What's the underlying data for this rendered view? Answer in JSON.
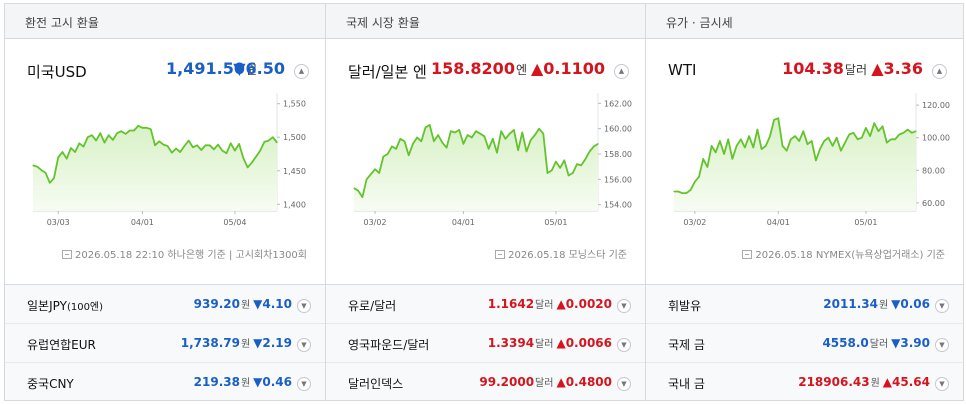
{
  "panels": [
    {
      "header": "환전 고시 환율",
      "main": {
        "name": "미국USD",
        "value": "1,491.50",
        "unit": "원",
        "arrow": "▼",
        "change": "6.50",
        "direction": "down",
        "expand_icon": "chevron-up-icon"
      },
      "source": {
        "icon": "source-document-icon",
        "text": "2026.05.18 22:10 하나은행 기준",
        "extra": "고시회차1300회"
      },
      "rows": [
        {
          "name": "일본JPY",
          "name_small": "(100엔)",
          "value": "939.20",
          "unit": "원",
          "arrow": "▼",
          "change": "4.10",
          "direction": "down"
        },
        {
          "name": "유럽연합EUR",
          "name_small": "",
          "value": "1,738.79",
          "unit": "원",
          "arrow": "▼",
          "change": "2.19",
          "direction": "down"
        },
        {
          "name": "중국CNY",
          "name_small": "",
          "value": "219.38",
          "unit": "원",
          "arrow": "▼",
          "change": "0.46",
          "direction": "down"
        }
      ]
    },
    {
      "header": "국제 시장 환율",
      "main": {
        "name": "달러/일본 엔",
        "value": "158.8200",
        "unit": "엔",
        "arrow": "▲",
        "change": "0.1100",
        "direction": "up",
        "expand_icon": "chevron-up-icon"
      },
      "source": {
        "icon": "source-document-icon",
        "text": "2026.05.18 모닝스타 기준",
        "extra": ""
      },
      "rows": [
        {
          "name": "유로/달러",
          "name_small": "",
          "value": "1.1642",
          "unit": "달러",
          "arrow": "▲",
          "change": "0.0020",
          "direction": "up"
        },
        {
          "name": "영국파운드/달러",
          "name_small": "",
          "value": "1.3394",
          "unit": "달러",
          "arrow": "▲",
          "change": "0.0066",
          "direction": "up"
        },
        {
          "name": "달러인덱스",
          "name_small": "",
          "value": "99.2000",
          "unit": "달러",
          "arrow": "▲",
          "change": "0.4800",
          "direction": "up"
        }
      ]
    },
    {
      "header": "유가 · 금시세",
      "main": {
        "name": "WTI",
        "value": "104.38",
        "unit": "달러",
        "arrow": "▲",
        "change": "3.36",
        "direction": "up",
        "expand_icon": "chevron-up-icon"
      },
      "source": {
        "icon": "source-document-icon",
        "text": "2026.05.18 NYMEX(뉴욕상업거래소) 기준",
        "extra": ""
      },
      "rows": [
        {
          "name": "휘발유",
          "name_small": "",
          "value": "2011.34",
          "unit": "원",
          "arrow": "▼",
          "change": "0.06",
          "direction": "down"
        },
        {
          "name": "국제 금",
          "name_small": "",
          "value": "4558.0",
          "unit": "달러",
          "arrow": "▼",
          "change": "3.90",
          "direction": "down"
        },
        {
          "name": "국내 금",
          "name_small": "",
          "value": "218906.43",
          "unit": "원",
          "arrow": "▲",
          "change": "45.64",
          "direction": "up"
        }
      ]
    }
  ],
  "colors": {
    "up": "#d5141e",
    "down": "#1a5fc5",
    "line": "#63c32c",
    "fill_top": "#d8f1c6",
    "fill_bottom": "#f7fcf3"
  },
  "chart_data": [
    {
      "type": "area",
      "x": [
        0,
        1,
        2,
        3,
        4,
        5,
        6,
        7,
        8,
        9,
        10,
        11,
        12,
        13,
        14,
        15,
        16,
        17,
        18,
        19,
        20,
        21,
        22,
        23,
        24,
        25,
        26,
        27,
        28,
        29,
        30,
        31,
        32,
        33,
        34,
        35,
        36,
        37,
        38,
        39,
        40,
        41,
        42,
        43,
        44,
        45,
        46,
        47,
        48,
        49,
        50,
        51,
        52,
        53,
        54,
        55,
        56,
        57,
        58
      ],
      "xticks": [
        {
          "label": "03/03",
          "at": 6
        },
        {
          "label": "04/01",
          "at": 26
        },
        {
          "label": "05/04",
          "at": 48
        }
      ],
      "ylim": [
        1390,
        1560
      ],
      "yticks": [
        {
          "label": "1,550",
          "value": 1550
        },
        {
          "label": "1,500",
          "value": 1500
        },
        {
          "label": "1,450",
          "value": 1450
        },
        {
          "label": "1,400",
          "value": 1400
        }
      ],
      "values": [
        1458,
        1456,
        1451,
        1447,
        1432,
        1439,
        1470,
        1478,
        1468,
        1484,
        1478,
        1491,
        1486,
        1500,
        1503,
        1495,
        1506,
        1492,
        1503,
        1496,
        1506,
        1509,
        1505,
        1510,
        1510,
        1517,
        1514,
        1514,
        1512,
        1488,
        1494,
        1489,
        1487,
        1477,
        1483,
        1478,
        1487,
        1495,
        1485,
        1488,
        1481,
        1488,
        1488,
        1482,
        1489,
        1480,
        1476,
        1491,
        1480,
        1490,
        1469,
        1455,
        1462,
        1471,
        1480,
        1493,
        1495,
        1500,
        1492
      ]
    },
    {
      "type": "area",
      "x": [
        0,
        1,
        2,
        3,
        4,
        5,
        6,
        7,
        8,
        9,
        10,
        11,
        12,
        13,
        14,
        15,
        16,
        17,
        18,
        19,
        20,
        21,
        22,
        23,
        24,
        25,
        26,
        27,
        28,
        29,
        30,
        31,
        32,
        33,
        34,
        35,
        36,
        37,
        38,
        39,
        40,
        41,
        42,
        43,
        44,
        45,
        46,
        47,
        48,
        49,
        50,
        51,
        52,
        53,
        54,
        55,
        56,
        57,
        58
      ],
      "xticks": [
        {
          "label": "03/02",
          "at": 5
        },
        {
          "label": "04/01",
          "at": 26
        },
        {
          "label": "05/01",
          "at": 48
        }
      ],
      "ylim": [
        153.5,
        162.5
      ],
      "yticks": [
        {
          "label": "162.00",
          "value": 162
        },
        {
          "label": "160.00",
          "value": 160
        },
        {
          "label": "158.00",
          "value": 158
        },
        {
          "label": "156.00",
          "value": 156
        },
        {
          "label": "154.00",
          "value": 154
        }
      ],
      "values": [
        155.3,
        155.1,
        154.6,
        156.0,
        156.4,
        156.8,
        156.5,
        157.8,
        158.0,
        158.6,
        158.4,
        159.2,
        159.0,
        157.9,
        158.8,
        159.3,
        159.0,
        160.1,
        160.3,
        159.0,
        159.5,
        158.9,
        158.5,
        159.8,
        159.7,
        159.9,
        158.8,
        159.5,
        159.3,
        159.8,
        159.6,
        159.4,
        158.4,
        159.2,
        158.1,
        159.8,
        159.2,
        159.6,
        159.9,
        158.3,
        159.7,
        158.2,
        159.1,
        159.5,
        160.0,
        159.6,
        156.5,
        156.7,
        157.4,
        156.9,
        157.5,
        156.3,
        156.5,
        157.2,
        157.1,
        157.6,
        158.2,
        158.6,
        158.8
      ]
    },
    {
      "type": "area",
      "x": [
        0,
        1,
        2,
        3,
        4,
        5,
        6,
        7,
        8,
        9,
        10,
        11,
        12,
        13,
        14,
        15,
        16,
        17,
        18,
        19,
        20,
        21,
        22,
        23,
        24,
        25,
        26,
        27,
        28,
        29,
        30,
        31,
        32,
        33,
        34,
        35,
        36,
        37,
        38,
        39,
        40,
        41,
        42,
        43,
        44,
        45,
        46,
        47,
        48,
        49,
        50,
        51,
        52,
        53,
        54,
        55,
        56,
        57,
        58
      ],
      "xticks": [
        {
          "label": "03/02",
          "at": 5
        },
        {
          "label": "04/01",
          "at": 25
        },
        {
          "label": "05/01",
          "at": 46
        }
      ],
      "ylim": [
        55,
        125
      ],
      "yticks": [
        {
          "label": "120.00",
          "value": 120
        },
        {
          "label": "100.00",
          "value": 100
        },
        {
          "label": "80.00",
          "value": 80
        },
        {
          "label": "60.00",
          "value": 60
        }
      ],
      "values": [
        67,
        67,
        66,
        66,
        68,
        73,
        76,
        87,
        82,
        95,
        91,
        98,
        90,
        99,
        87,
        95,
        99,
        94,
        101,
        94,
        105,
        93,
        95,
        101,
        111,
        112,
        95,
        92,
        99,
        101,
        98,
        104,
        96,
        98,
        86,
        93,
        98,
        100,
        95,
        100,
        92,
        97,
        102,
        103,
        99,
        100,
        106,
        101,
        109,
        104,
        107,
        97,
        99,
        99,
        102,
        103,
        105,
        103,
        104
      ]
    }
  ]
}
